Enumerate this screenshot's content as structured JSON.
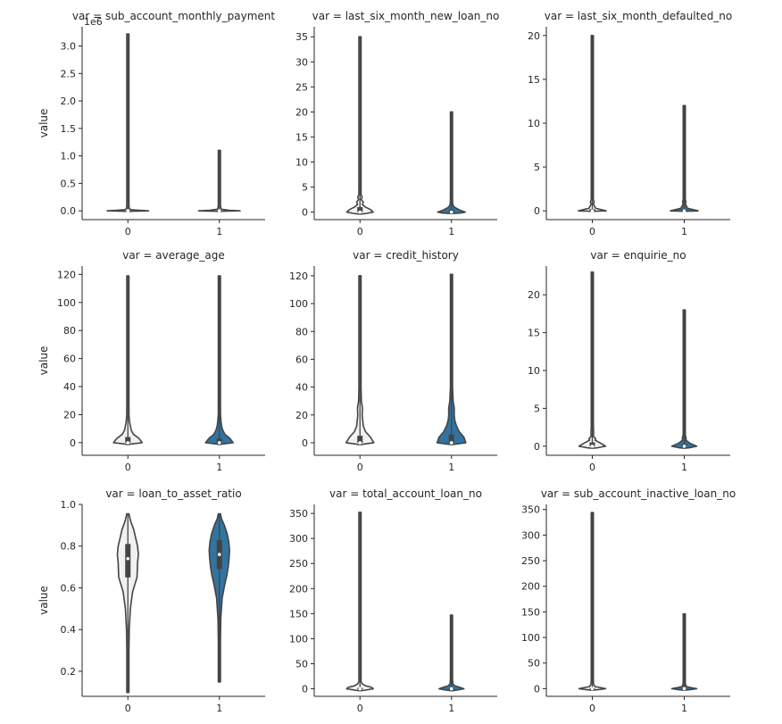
{
  "figure": {
    "ylabel": "value"
  },
  "colors": {
    "light_violin": "#f1f1f1",
    "dark_violin": "#3274a1",
    "edge": "#444444",
    "axis": "#262626"
  },
  "chart_data": [
    {
      "type": "violin",
      "title": "var = sub_account_monthly_payment",
      "ylabel": "value",
      "categories": [
        "0",
        "1"
      ],
      "yticks": [
        0.0,
        0.5,
        1.0,
        1.5,
        2.0,
        2.5,
        3.0
      ],
      "ytick_labels": [
        "0.0",
        "0.5",
        "1.0",
        "1.5",
        "2.0",
        "2.5",
        "3.0"
      ],
      "ylim": [
        -0.16,
        3.35
      ],
      "offset_label": "1e6",
      "violins": [
        {
          "category": "0",
          "shade": "light",
          "max": 3.22,
          "min": 0,
          "q1": 0,
          "median": 0,
          "q3": 0.01,
          "profile": [
            [
              0,
              0.75
            ],
            [
              0.01,
              0.4
            ],
            [
              0.02,
              0.12
            ],
            [
              0.04,
              0.05
            ],
            [
              0.1,
              0.03
            ]
          ]
        },
        {
          "category": "1",
          "shade": "light",
          "max": 1.1,
          "min": 0,
          "q1": 0,
          "median": 0,
          "q3": 0.01,
          "profile": [
            [
              0,
              0.75
            ],
            [
              0.01,
              0.35
            ],
            [
              0.03,
              0.06
            ],
            [
              0.1,
              0.03
            ]
          ]
        }
      ]
    },
    {
      "type": "violin",
      "title": "var = last_six_month_new_loan_no",
      "ylabel": "",
      "categories": [
        "0",
        "1"
      ],
      "yticks": [
        0,
        5,
        10,
        15,
        20,
        25,
        30,
        35
      ],
      "ytick_labels": [
        "0",
        "5",
        "10",
        "15",
        "20",
        "25",
        "30",
        "35"
      ],
      "ylim": [
        -1.5,
        37
      ],
      "violins": [
        {
          "category": "0",
          "shade": "light",
          "max": 35,
          "min": 0,
          "q1": 0,
          "median": 0,
          "q3": 1,
          "profile": [
            [
              -0.3,
              0.2
            ],
            [
              0,
              0.48
            ],
            [
              0.5,
              0.38
            ],
            [
              1,
              0.2
            ],
            [
              1.5,
              0.09
            ],
            [
              2,
              0.12
            ],
            [
              2.5,
              0.05
            ],
            [
              3,
              0.08
            ],
            [
              3.5,
              0.03
            ],
            [
              4,
              0.04
            ],
            [
              6,
              0.02
            ]
          ]
        },
        {
          "category": "1",
          "shade": "dark",
          "max": 20,
          "min": 0,
          "q1": 0,
          "median": 0,
          "q3": 0.5,
          "profile": [
            [
              -0.2,
              0.3
            ],
            [
              0,
              0.5
            ],
            [
              0.4,
              0.3
            ],
            [
              1,
              0.1
            ],
            [
              1.5,
              0.05
            ],
            [
              2,
              0.04
            ],
            [
              3,
              0.02
            ]
          ]
        }
      ]
    },
    {
      "type": "violin",
      "title": "var = last_six_month_defaulted_no",
      "ylabel": "",
      "categories": [
        "0",
        "1"
      ],
      "yticks": [
        0,
        5,
        10,
        15,
        20
      ],
      "ytick_labels": [
        "0",
        "5",
        "10",
        "15",
        "20"
      ],
      "ylim": [
        -1,
        21
      ],
      "violins": [
        {
          "category": "0",
          "shade": "light",
          "max": 20,
          "min": 0,
          "q1": 0,
          "median": 0,
          "q3": 0.2,
          "profile": [
            [
              0,
              0.5
            ],
            [
              0.3,
              0.12
            ],
            [
              0.8,
              0.03
            ],
            [
              1,
              0.07
            ],
            [
              1.3,
              0.02
            ],
            [
              2,
              0.02
            ]
          ]
        },
        {
          "category": "1",
          "shade": "dark",
          "max": 12,
          "min": 0,
          "q1": 0,
          "median": 0,
          "q3": 0.2,
          "profile": [
            [
              0,
              0.5
            ],
            [
              0.3,
              0.12
            ],
            [
              0.8,
              0.03
            ],
            [
              1,
              0.06
            ],
            [
              1.3,
              0.02
            ],
            [
              2,
              0.02
            ]
          ]
        }
      ]
    },
    {
      "type": "violin",
      "title": "var = average_age",
      "ylabel": "value",
      "categories": [
        "0",
        "1"
      ],
      "yticks": [
        0,
        20,
        40,
        60,
        80,
        100,
        120
      ],
      "ytick_labels": [
        "0",
        "20",
        "40",
        "60",
        "80",
        "100",
        "120"
      ],
      "ylim": [
        -9,
        126
      ],
      "violins": [
        {
          "category": "0",
          "shade": "light",
          "max": 119,
          "min": 0,
          "q1": 0,
          "median": 0,
          "q3": 4,
          "profile": [
            [
              -1,
              0.1
            ],
            [
              0,
              0.52
            ],
            [
              3,
              0.4
            ],
            [
              6,
              0.2
            ],
            [
              9,
              0.12
            ],
            [
              12,
              0.09
            ],
            [
              15,
              0.06
            ],
            [
              20,
              0.04
            ],
            [
              30,
              0.02
            ],
            [
              40,
              0.01
            ]
          ]
        },
        {
          "category": "1",
          "shade": "dark",
          "max": 119,
          "min": 0,
          "q1": 0,
          "median": 0,
          "q3": 3,
          "profile": [
            [
              -1,
              0.1
            ],
            [
              0,
              0.5
            ],
            [
              3,
              0.38
            ],
            [
              6,
              0.2
            ],
            [
              9,
              0.12
            ],
            [
              12,
              0.08
            ],
            [
              15,
              0.06
            ],
            [
              20,
              0.04
            ],
            [
              30,
              0.02
            ],
            [
              40,
              0.01
            ]
          ]
        }
      ]
    },
    {
      "type": "violin",
      "title": "var = credit_history",
      "ylabel": "",
      "categories": [
        "0",
        "1"
      ],
      "yticks": [
        0,
        20,
        40,
        60,
        80,
        100,
        120
      ],
      "ytick_labels": [
        "0",
        "20",
        "40",
        "60",
        "80",
        "100",
        "120"
      ],
      "ylim": [
        -9,
        127
      ],
      "violins": [
        {
          "category": "0",
          "shade": "light",
          "max": 120,
          "min": 0,
          "q1": 0,
          "median": 0,
          "q3": 5,
          "profile": [
            [
              -1,
              0.12
            ],
            [
              0,
              0.5
            ],
            [
              4,
              0.38
            ],
            [
              8,
              0.2
            ],
            [
              12,
              0.12
            ],
            [
              16,
              0.1
            ],
            [
              20,
              0.08
            ],
            [
              25,
              0.09
            ],
            [
              30,
              0.05
            ],
            [
              40,
              0.03
            ],
            [
              50,
              0.015
            ]
          ]
        },
        {
          "category": "1",
          "shade": "dark",
          "max": 121,
          "min": 0,
          "q1": 0,
          "median": 0,
          "q3": 6,
          "profile": [
            [
              -1,
              0.14
            ],
            [
              0,
              0.52
            ],
            [
              4,
              0.45
            ],
            [
              8,
              0.28
            ],
            [
              12,
              0.18
            ],
            [
              16,
              0.12
            ],
            [
              20,
              0.1
            ],
            [
              25,
              0.1
            ],
            [
              30,
              0.06
            ],
            [
              40,
              0.03
            ],
            [
              50,
              0.015
            ]
          ]
        }
      ]
    },
    {
      "type": "violin",
      "title": "var = enquirie_no",
      "ylabel": "",
      "categories": [
        "0",
        "1"
      ],
      "yticks": [
        0,
        5,
        10,
        15,
        20
      ],
      "ytick_labels": [
        "0",
        "5",
        "10",
        "15",
        "20"
      ],
      "ylim": [
        -1.2,
        23.8
      ],
      "violins": [
        {
          "category": "0",
          "shade": "light",
          "max": 23,
          "min": 0,
          "q1": 0,
          "median": 0,
          "q3": 0.5,
          "profile": [
            [
              -0.2,
              0.2
            ],
            [
              0,
              0.48
            ],
            [
              0.4,
              0.3
            ],
            [
              0.8,
              0.1
            ],
            [
              1,
              0.12
            ],
            [
              1.3,
              0.04
            ],
            [
              1.8,
              0.05
            ],
            [
              2.5,
              0.02
            ]
          ]
        },
        {
          "category": "1",
          "shade": "dark",
          "max": 18,
          "min": 0,
          "q1": 0,
          "median": 0,
          "q3": 0.3,
          "profile": [
            [
              -0.2,
              0.2
            ],
            [
              0,
              0.45
            ],
            [
              0.4,
              0.2
            ],
            [
              0.8,
              0.06
            ],
            [
              1,
              0.07
            ],
            [
              1.5,
              0.03
            ],
            [
              2,
              0.02
            ]
          ]
        }
      ]
    },
    {
      "type": "violin",
      "title": "var = loan_to_asset_ratio",
      "ylabel": "value",
      "categories": [
        "0",
        "1"
      ],
      "yticks": [
        0.2,
        0.4,
        0.6,
        0.8,
        1.0
      ],
      "ytick_labels": [
        "0.2",
        "0.4",
        "0.6",
        "0.8",
        "1.0"
      ],
      "ylim": [
        0.08,
        1.0
      ],
      "violins": [
        {
          "category": "0",
          "shade": "light",
          "max": 0.955,
          "min": 0.1,
          "q1": 0.65,
          "median": 0.74,
          "q3": 0.81,
          "profile": [
            [
              0.1,
              0.01
            ],
            [
              0.2,
              0.02
            ],
            [
              0.3,
              0.03
            ],
            [
              0.4,
              0.05
            ],
            [
              0.5,
              0.09
            ],
            [
              0.58,
              0.17
            ],
            [
              0.62,
              0.26
            ],
            [
              0.65,
              0.33
            ],
            [
              0.68,
              0.34
            ],
            [
              0.72,
              0.35
            ],
            [
              0.76,
              0.38
            ],
            [
              0.8,
              0.35
            ],
            [
              0.84,
              0.28
            ],
            [
              0.88,
              0.21
            ],
            [
              0.92,
              0.1
            ],
            [
              0.955,
              0.01
            ]
          ]
        },
        {
          "category": "1",
          "shade": "dark",
          "max": 0.955,
          "min": 0.15,
          "q1": 0.69,
          "median": 0.76,
          "q3": 0.83,
          "profile": [
            [
              0.15,
              0.01
            ],
            [
              0.25,
              0.02
            ],
            [
              0.35,
              0.03
            ],
            [
              0.45,
              0.05
            ],
            [
              0.55,
              0.1
            ],
            [
              0.62,
              0.2
            ],
            [
              0.66,
              0.27
            ],
            [
              0.7,
              0.32
            ],
            [
              0.74,
              0.35
            ],
            [
              0.78,
              0.37
            ],
            [
              0.82,
              0.34
            ],
            [
              0.86,
              0.28
            ],
            [
              0.9,
              0.18
            ],
            [
              0.93,
              0.08
            ],
            [
              0.955,
              0.01
            ]
          ]
        }
      ]
    },
    {
      "type": "violin",
      "title": "var = total_account_loan_no",
      "ylabel": "",
      "categories": [
        "0",
        "1"
      ],
      "yticks": [
        0,
        50,
        100,
        150,
        200,
        250,
        300,
        350
      ],
      "ytick_labels": [
        "0",
        "50",
        "100",
        "150",
        "200",
        "250",
        "300",
        "350"
      ],
      "ylim": [
        -15,
        368
      ],
      "violins": [
        {
          "category": "0",
          "shade": "light",
          "max": 352,
          "min": 0,
          "q1": 0,
          "median": 0,
          "q3": 2,
          "profile": [
            [
              -3,
              0.15
            ],
            [
              0,
              0.48
            ],
            [
              3,
              0.42
            ],
            [
              6,
              0.2
            ],
            [
              10,
              0.08
            ],
            [
              15,
              0.03
            ],
            [
              30,
              0.015
            ]
          ]
        },
        {
          "category": "1",
          "shade": "dark",
          "max": 147,
          "min": 0,
          "q1": 0,
          "median": 0,
          "q3": 1,
          "profile": [
            [
              -3,
              0.15
            ],
            [
              0,
              0.45
            ],
            [
              3,
              0.3
            ],
            [
              6,
              0.12
            ],
            [
              10,
              0.05
            ],
            [
              20,
              0.02
            ]
          ]
        }
      ]
    },
    {
      "type": "violin",
      "title": "var = sub_account_inactive_loan_no",
      "ylabel": "",
      "categories": [
        "0",
        "1"
      ],
      "yticks": [
        0,
        50,
        100,
        150,
        200,
        250,
        300,
        350
      ],
      "ytick_labels": [
        "0",
        "50",
        "100",
        "150",
        "200",
        "250",
        "300",
        "350"
      ],
      "ylim": [
        -15,
        360
      ],
      "violins": [
        {
          "category": "0",
          "shade": "light",
          "max": 344,
          "min": 0,
          "q1": 0,
          "median": 0,
          "q3": 1,
          "profile": [
            [
              -2,
              0.2
            ],
            [
              0,
              0.48
            ],
            [
              2,
              0.3
            ],
            [
              4,
              0.1
            ],
            [
              8,
              0.05
            ],
            [
              15,
              0.02
            ]
          ]
        },
        {
          "category": "1",
          "shade": "dark",
          "max": 146,
          "min": 0,
          "q1": 0,
          "median": 0,
          "q3": 0.5,
          "profile": [
            [
              -2,
              0.2
            ],
            [
              0,
              0.45
            ],
            [
              2,
              0.25
            ],
            [
              4,
              0.08
            ],
            [
              10,
              0.02
            ]
          ]
        }
      ]
    }
  ]
}
